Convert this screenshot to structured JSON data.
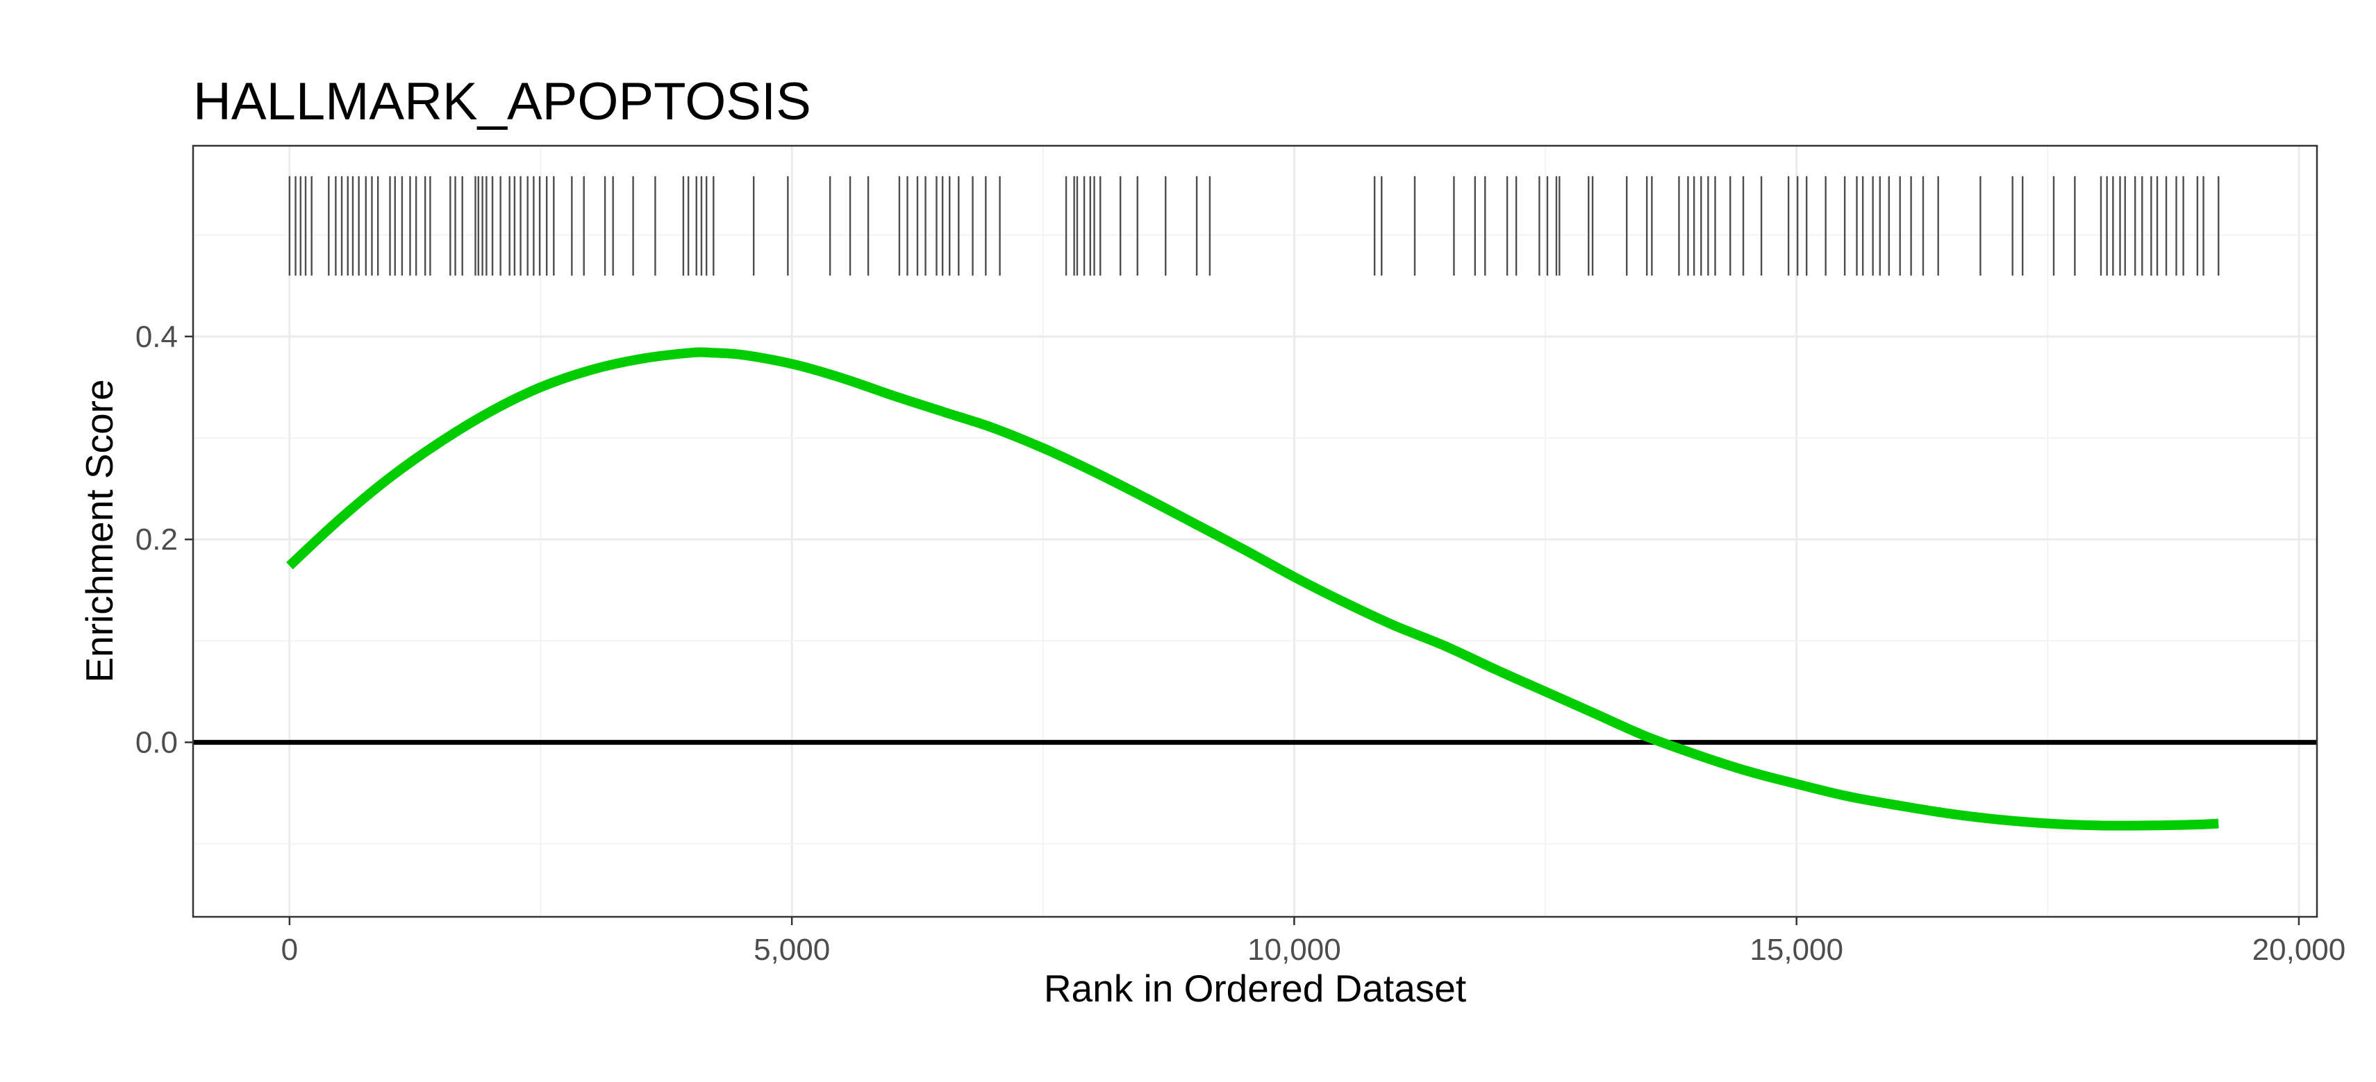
{
  "chart_data": {
    "type": "line",
    "title": "HALLMARK_APOPTOSIS",
    "xlabel": "Rank in Ordered Dataset",
    "ylabel": "Enrichment Score",
    "xlim": [
      -960,
      20180
    ],
    "ylim": [
      -0.172,
      0.588
    ],
    "x_ticks": [
      0,
      5000,
      10000,
      15000,
      20000
    ],
    "x_tick_labels": [
      "0",
      "5,000",
      "10,000",
      "15,000",
      "20,000"
    ],
    "y_ticks": [
      0.0,
      0.2,
      0.4
    ],
    "y_tick_labels": [
      "0.0",
      "0.2",
      "0.4"
    ],
    "grid": true,
    "zero_line": 0,
    "series": [
      {
        "color": "#00cc00",
        "x": [
          0,
          500,
          1000,
          1500,
          2000,
          2500,
          3000,
          3500,
          4000,
          4200,
          4500,
          5000,
          5500,
          6000,
          6500,
          7000,
          7500,
          8000,
          8500,
          9000,
          9500,
          10000,
          10500,
          11000,
          11500,
          12000,
          12500,
          13000,
          13500,
          14000,
          14500,
          15000,
          15500,
          16000,
          16500,
          17000,
          17500,
          18000,
          18500,
          19000,
          19200
        ],
        "y": [
          0.174,
          0.22,
          0.261,
          0.296,
          0.326,
          0.35,
          0.367,
          0.378,
          0.384,
          0.384,
          0.382,
          0.373,
          0.359,
          0.342,
          0.326,
          0.31,
          0.29,
          0.267,
          0.242,
          0.216,
          0.19,
          0.163,
          0.138,
          0.115,
          0.095,
          0.072,
          0.05,
          0.028,
          0.006,
          -0.012,
          -0.028,
          -0.041,
          -0.053,
          -0.062,
          -0.07,
          -0.076,
          -0.08,
          -0.082,
          -0.082,
          -0.081,
          -0.08
        ]
      }
    ],
    "hit_color": "#4d4d4d",
    "hits_y_range": [
      0.46,
      0.558
    ],
    "hits": [
      0,
      60,
      110,
      160,
      220,
      390,
      460,
      520,
      580,
      630,
      690,
      760,
      820,
      880,
      1000,
      1050,
      1120,
      1200,
      1260,
      1350,
      1400,
      1600,
      1650,
      1720,
      1850,
      1880,
      1920,
      1960,
      2020,
      2100,
      2190,
      2240,
      2300,
      2370,
      2430,
      2490,
      2560,
      2630,
      2810,
      2930,
      3140,
      3220,
      3420,
      3640,
      3920,
      3970,
      4050,
      4100,
      4150,
      4220,
      4620,
      4960,
      5380,
      5580,
      5760,
      6070,
      6150,
      6250,
      6330,
      6440,
      6500,
      6570,
      6660,
      6800,
      6930,
      7070,
      7730,
      7810,
      7840,
      7910,
      7970,
      8010,
      8070,
      8270,
      8440,
      8720,
      9030,
      9160,
      10800,
      10870,
      11200,
      11590,
      11800,
      11900,
      12120,
      12210,
      12440,
      12520,
      12610,
      12640,
      12930,
      12970,
      13310,
      13510,
      13560,
      13830,
      13920,
      13980,
      14050,
      14120,
      14190,
      14340,
      14470,
      14650,
      14920,
      15010,
      15100,
      15290,
      15480,
      15600,
      15660,
      15760,
      15830,
      15920,
      16030,
      16140,
      16260,
      16410,
      16830,
      17150,
      17250,
      17560,
      17770,
      18030,
      18090,
      18150,
      18220,
      18270,
      18370,
      18440,
      18530,
      18590,
      18680,
      18780,
      18850,
      18990,
      19050,
      19200
    ]
  }
}
